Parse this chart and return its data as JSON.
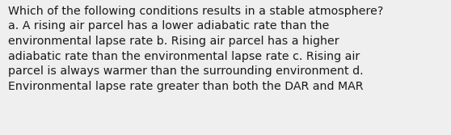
{
  "text": "Which of the following conditions results in a stable atmosphere?\na. A rising air parcel has a lower adiabatic rate than the\nenvironmental lapse rate b. Rising air parcel has a higher\nadiabatic rate than the environmental lapse rate c. Rising air\nparcel is always warmer than the surrounding environment d.\nEnvironmental lapse rate greater than both the DAR and MAR",
  "background_color": "#efefef",
  "text_color": "#1a1a1a",
  "font_size": 10.2,
  "fig_width": 5.58,
  "fig_height": 1.67,
  "dpi": 100
}
